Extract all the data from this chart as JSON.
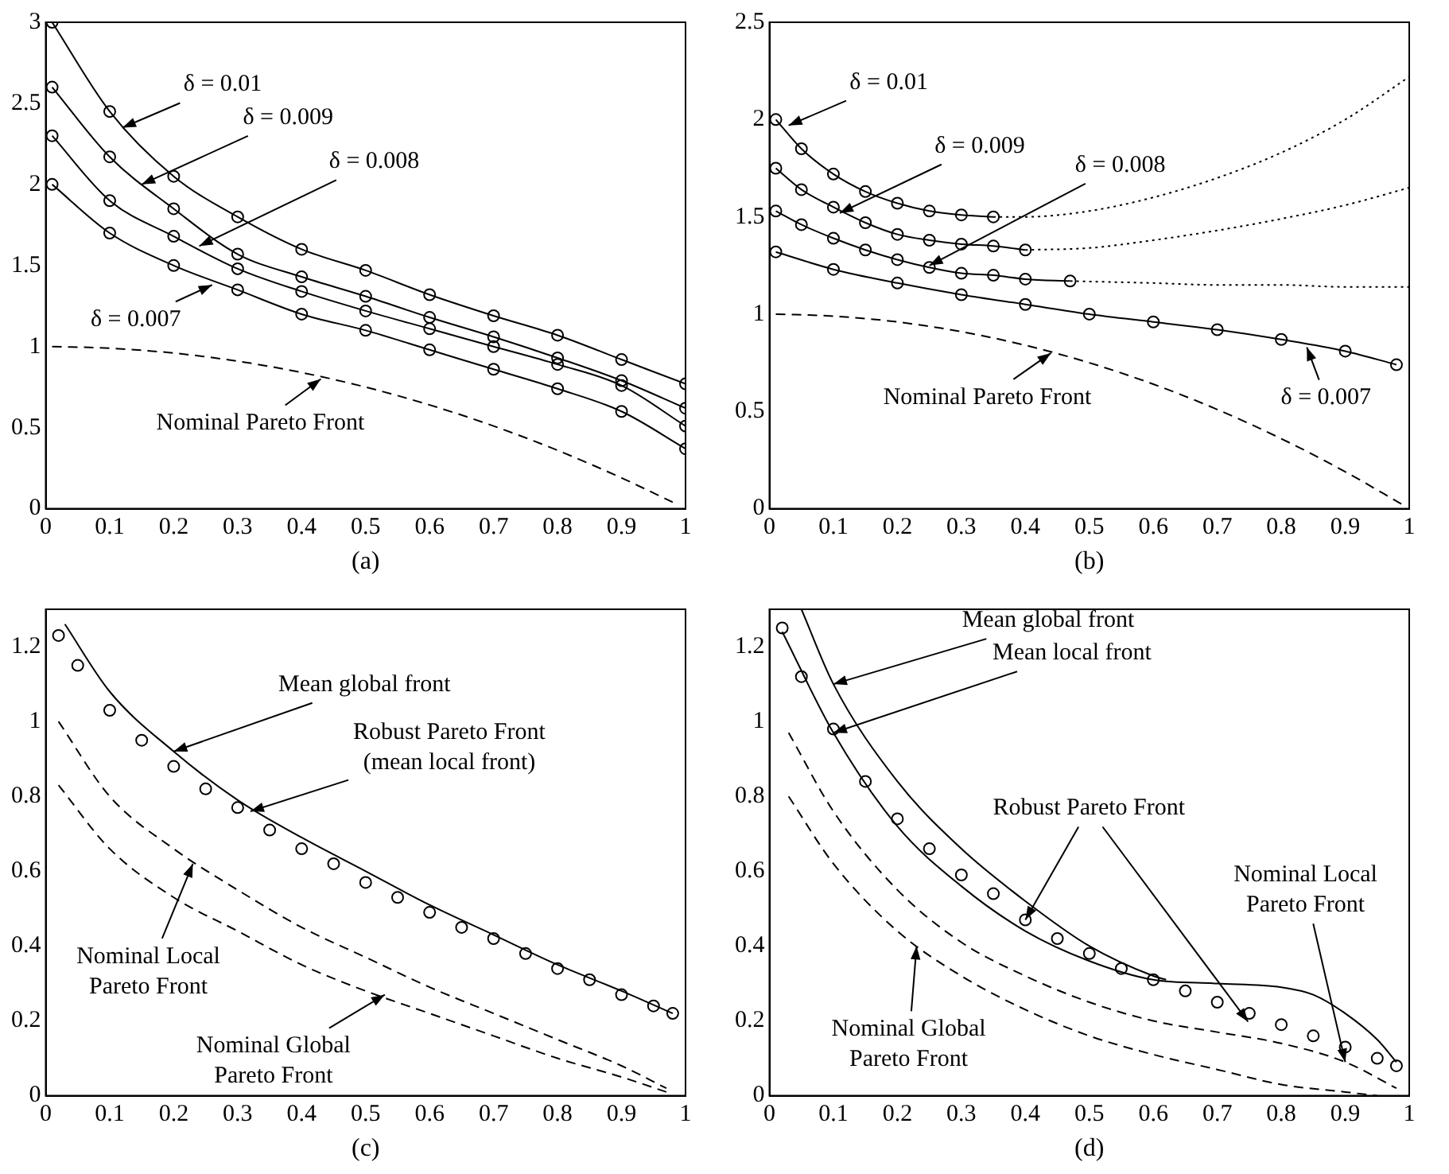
{
  "chart_data": [
    {
      "type": "line",
      "xlabel": "(a)",
      "xlim": [
        0,
        1
      ],
      "ylim": [
        0,
        3
      ],
      "xticks": [
        0,
        0.1,
        0.2,
        0.3,
        0.4,
        0.5,
        0.6,
        0.7,
        0.8,
        0.9,
        1
      ],
      "yticks": [
        0,
        0.5,
        1,
        1.5,
        2,
        2.5,
        3
      ],
      "series": [
        {
          "type": "line",
          "color": "#000000",
          "marker": "circle",
          "line_style": "solid",
          "x": [
            0.01,
            0.1,
            0.2,
            0.3,
            0.4,
            0.5,
            0.6,
            0.7,
            0.8,
            0.9,
            1
          ],
          "values": [
            3.0,
            2.45,
            2.05,
            1.8,
            1.6,
            1.47,
            1.32,
            1.19,
            1.07,
            0.92,
            0.77
          ]
        },
        {
          "type": "line",
          "color": "#000000",
          "marker": "circle",
          "line_style": "solid",
          "x": [
            0.01,
            0.1,
            0.2,
            0.3,
            0.4,
            0.5,
            0.6,
            0.7,
            0.8,
            0.9,
            1
          ],
          "values": [
            2.6,
            2.17,
            1.85,
            1.57,
            1.43,
            1.31,
            1.18,
            1.06,
            0.93,
            0.79,
            0.62
          ]
        },
        {
          "type": "line",
          "color": "#000000",
          "marker": "circle",
          "line_style": "solid",
          "x": [
            0.01,
            0.1,
            0.2,
            0.3,
            0.4,
            0.5,
            0.6,
            0.7,
            0.8,
            0.9,
            1
          ],
          "values": [
            2.3,
            1.9,
            1.68,
            1.48,
            1.34,
            1.22,
            1.11,
            1.0,
            0.89,
            0.76,
            0.51
          ]
        },
        {
          "type": "line",
          "color": "#000000",
          "marker": "circle",
          "line_style": "solid",
          "x": [
            0.01,
            0.1,
            0.2,
            0.3,
            0.4,
            0.5,
            0.6,
            0.7,
            0.8,
            0.9,
            1
          ],
          "values": [
            2.0,
            1.7,
            1.5,
            1.35,
            1.2,
            1.1,
            0.98,
            0.86,
            0.74,
            0.6,
            0.37
          ]
        },
        {
          "type": "line",
          "color": "#000000",
          "marker": "none",
          "line_style": "dashed",
          "x": [
            0.01,
            0.1,
            0.2,
            0.3,
            0.4,
            0.5,
            0.6,
            0.7,
            0.8,
            0.9,
            0.98
          ],
          "values": [
            1.0,
            0.99,
            0.96,
            0.91,
            0.84,
            0.75,
            0.64,
            0.51,
            0.36,
            0.19,
            0.04
          ]
        }
      ],
      "annotations": [
        {
          "text": "δ = 0.01",
          "x": 0.12,
          "y": 2.35
        },
        {
          "text": "δ = 0.009",
          "x": 0.15,
          "y": 2.0
        },
        {
          "text": "δ = 0.008",
          "x": 0.24,
          "y": 1.62
        },
        {
          "text": "δ = 0.007",
          "x": 0.26,
          "y": 1.38
        },
        {
          "text": "Nominal Pareto Front",
          "x": 0.43,
          "y": 0.8
        }
      ]
    },
    {
      "type": "line",
      "xlabel": "(b)",
      "xlim": [
        0,
        1
      ],
      "ylim": [
        0,
        2.5
      ],
      "xticks": [
        0,
        0.1,
        0.2,
        0.3,
        0.4,
        0.5,
        0.6,
        0.7,
        0.8,
        0.9,
        1
      ],
      "yticks": [
        0,
        0.5,
        1,
        1.5,
        2,
        2.5
      ],
      "series": [
        {
          "type": "line",
          "color": "#000000",
          "marker": "circle",
          "line_style": "solid",
          "x": [
            0.01,
            0.05,
            0.1,
            0.15,
            0.2,
            0.25,
            0.3,
            0.35
          ],
          "values": [
            2.0,
            1.85,
            1.72,
            1.63,
            1.57,
            1.53,
            1.51,
            1.5
          ]
        },
        {
          "type": "line",
          "color": "#000000",
          "marker": "none",
          "line_style": "dotted",
          "x": [
            0.35,
            0.4,
            0.5,
            0.6,
            0.7,
            0.8,
            0.9,
            1
          ],
          "values": [
            1.5,
            1.5,
            1.53,
            1.6,
            1.7,
            1.83,
            2.0,
            2.22
          ]
        },
        {
          "type": "line",
          "color": "#000000",
          "marker": "circle",
          "line_style": "solid",
          "x": [
            0.01,
            0.05,
            0.1,
            0.15,
            0.2,
            0.25,
            0.3,
            0.35,
            0.4
          ],
          "values": [
            1.75,
            1.64,
            1.55,
            1.47,
            1.41,
            1.38,
            1.36,
            1.35,
            1.33
          ]
        },
        {
          "type": "line",
          "color": "#000000",
          "marker": "none",
          "line_style": "dotted",
          "x": [
            0.4,
            0.5,
            0.6,
            0.7,
            0.8,
            0.9,
            1
          ],
          "values": [
            1.33,
            1.34,
            1.38,
            1.43,
            1.49,
            1.56,
            1.65
          ]
        },
        {
          "type": "line",
          "color": "#000000",
          "marker": "circle",
          "line_style": "solid",
          "x": [
            0.01,
            0.05,
            0.1,
            0.15,
            0.2,
            0.25,
            0.3,
            0.35,
            0.4,
            0.47
          ],
          "values": [
            1.53,
            1.46,
            1.39,
            1.33,
            1.28,
            1.24,
            1.21,
            1.2,
            1.18,
            1.17
          ]
        },
        {
          "type": "line",
          "color": "#000000",
          "marker": "none",
          "line_style": "dotted",
          "x": [
            0.47,
            0.6,
            0.7,
            0.8,
            0.9,
            1
          ],
          "values": [
            1.17,
            1.16,
            1.15,
            1.15,
            1.14,
            1.14
          ]
        },
        {
          "type": "line",
          "color": "#000000",
          "marker": "circle",
          "line_style": "solid",
          "x": [
            0.01,
            0.1,
            0.2,
            0.3,
            0.4,
            0.5,
            0.6,
            0.7,
            0.8,
            0.9,
            0.98
          ],
          "values": [
            1.32,
            1.23,
            1.16,
            1.1,
            1.05,
            1.0,
            0.96,
            0.92,
            0.87,
            0.81,
            0.74
          ]
        },
        {
          "type": "line",
          "color": "#000000",
          "marker": "none",
          "line_style": "dashed",
          "x": [
            0.01,
            0.1,
            0.2,
            0.3,
            0.4,
            0.5,
            0.6,
            0.7,
            0.8,
            0.9,
            0.99
          ],
          "values": [
            1.0,
            0.99,
            0.96,
            0.91,
            0.84,
            0.75,
            0.64,
            0.51,
            0.36,
            0.19,
            0.02
          ]
        }
      ],
      "annotations": [
        {
          "text": "δ = 0.01",
          "x": 0.03,
          "y": 1.97
        },
        {
          "text": "δ = 0.009",
          "x": 0.11,
          "y": 1.52
        },
        {
          "text": "δ = 0.008",
          "x": 0.25,
          "y": 1.25
        },
        {
          "text": "δ = 0.007",
          "x": 0.84,
          "y": 0.83
        },
        {
          "text": "Nominal Pareto Front",
          "x": 0.44,
          "y": 0.8
        }
      ]
    },
    {
      "type": "line",
      "xlabel": "(c)",
      "xlim": [
        0,
        1
      ],
      "ylim": [
        0,
        1.3
      ],
      "xticks": [
        0,
        0.1,
        0.2,
        0.3,
        0.4,
        0.5,
        0.6,
        0.7,
        0.8,
        0.9,
        1
      ],
      "yticks": [
        0,
        0.2,
        0.4,
        0.6,
        0.8,
        1,
        1.2
      ],
      "series": [
        {
          "type": "scatter",
          "color": "#000000",
          "marker": "circle",
          "x": [
            0.02,
            0.05,
            0.1,
            0.15,
            0.2,
            0.25,
            0.3,
            0.35,
            0.4,
            0.45,
            0.5,
            0.55,
            0.6,
            0.65,
            0.7,
            0.75,
            0.8,
            0.85,
            0.9,
            0.95,
            0.98
          ],
          "values": [
            1.23,
            1.15,
            1.03,
            0.95,
            0.88,
            0.82,
            0.77,
            0.71,
            0.66,
            0.62,
            0.57,
            0.53,
            0.49,
            0.45,
            0.42,
            0.38,
            0.34,
            0.31,
            0.27,
            0.24,
            0.22
          ]
        },
        {
          "type": "line",
          "color": "#000000",
          "marker": "none",
          "line_style": "solid",
          "x": [
            0.03,
            0.1,
            0.2,
            0.3,
            0.4,
            0.5,
            0.6,
            0.7,
            0.8,
            0.9,
            0.98
          ],
          "values": [
            1.26,
            1.08,
            0.92,
            0.79,
            0.69,
            0.6,
            0.51,
            0.43,
            0.35,
            0.28,
            0.22
          ]
        },
        {
          "type": "line",
          "color": "#000000",
          "marker": "none",
          "line_style": "dashed",
          "x": [
            0.02,
            0.1,
            0.2,
            0.3,
            0.4,
            0.5,
            0.6,
            0.7,
            0.8,
            0.9,
            0.97
          ],
          "values": [
            1.0,
            0.8,
            0.66,
            0.55,
            0.45,
            0.37,
            0.29,
            0.22,
            0.15,
            0.08,
            0.02
          ]
        },
        {
          "type": "line",
          "color": "#000000",
          "marker": "none",
          "line_style": "dashed",
          "x": [
            0.02,
            0.1,
            0.2,
            0.3,
            0.4,
            0.5,
            0.6,
            0.7,
            0.8,
            0.9,
            0.97
          ],
          "values": [
            0.83,
            0.66,
            0.53,
            0.44,
            0.35,
            0.28,
            0.22,
            0.16,
            0.1,
            0.05,
            0.01
          ]
        }
      ],
      "annotations": [
        {
          "text": "Mean global front",
          "x": 0.2,
          "y": 0.92
        },
        {
          "text": "Robust Pareto Front\n(mean local front)",
          "x": 0.32,
          "y": 0.76
        },
        {
          "text": "Nominal Local\nPareto Front",
          "x": 0.23,
          "y": 0.62
        },
        {
          "text": "Nominal Global\nPareto Front",
          "x": 0.53,
          "y": 0.27
        }
      ]
    },
    {
      "type": "line",
      "xlabel": "(d)",
      "xlim": [
        0,
        1
      ],
      "ylim": [
        0,
        1.3
      ],
      "xticks": [
        0,
        0.1,
        0.2,
        0.3,
        0.4,
        0.5,
        0.6,
        0.7,
        0.8,
        0.9,
        1
      ],
      "yticks": [
        0,
        0.2,
        0.4,
        0.6,
        0.8,
        1,
        1.2
      ],
      "series": [
        {
          "type": "scatter",
          "color": "#000000",
          "marker": "circle",
          "x": [
            0.02,
            0.05,
            0.1,
            0.15,
            0.2,
            0.25,
            0.3,
            0.35,
            0.4,
            0.45,
            0.5,
            0.55,
            0.6,
            0.65,
            0.7,
            0.75,
            0.8,
            0.85,
            0.9,
            0.95,
            0.98
          ],
          "values": [
            1.25,
            1.12,
            0.98,
            0.84,
            0.74,
            0.66,
            0.59,
            0.54,
            0.47,
            0.42,
            0.38,
            0.34,
            0.31,
            0.28,
            0.25,
            0.22,
            0.19,
            0.16,
            0.13,
            0.1,
            0.08
          ]
        },
        {
          "type": "line",
          "color": "#000000",
          "marker": "none",
          "line_style": "solid",
          "x": [
            0.05,
            0.1,
            0.2,
            0.3,
            0.4,
            0.5,
            0.6,
            0.62
          ],
          "values": [
            1.3,
            1.1,
            0.84,
            0.66,
            0.52,
            0.4,
            0.32,
            0.31
          ]
        },
        {
          "type": "line",
          "color": "#000000",
          "marker": "none",
          "line_style": "solid",
          "x": [
            0.02,
            0.1,
            0.2,
            0.3,
            0.4,
            0.5,
            0.6,
            0.7,
            0.8,
            0.85,
            0.9,
            0.95,
            0.98
          ],
          "values": [
            1.24,
            0.97,
            0.72,
            0.56,
            0.44,
            0.36,
            0.31,
            0.3,
            0.29,
            0.27,
            0.22,
            0.15,
            0.09
          ]
        },
        {
          "type": "line",
          "color": "#000000",
          "marker": "none",
          "line_style": "dashed",
          "x": [
            0.03,
            0.1,
            0.2,
            0.3,
            0.4,
            0.5,
            0.6,
            0.7,
            0.8,
            0.9,
            0.98
          ],
          "values": [
            0.97,
            0.76,
            0.55,
            0.41,
            0.32,
            0.25,
            0.2,
            0.17,
            0.14,
            0.09,
            0.02
          ]
        },
        {
          "type": "line",
          "color": "#000000",
          "marker": "none",
          "line_style": "dashed",
          "x": [
            0.03,
            0.1,
            0.2,
            0.3,
            0.4,
            0.5,
            0.6,
            0.7,
            0.8,
            0.9,
            0.95
          ],
          "values": [
            0.8,
            0.62,
            0.44,
            0.32,
            0.23,
            0.16,
            0.11,
            0.07,
            0.03,
            0.01,
            0.0
          ]
        }
      ],
      "annotations": [
        {
          "text": "Mean global front",
          "x": 0.1,
          "y": 1.1
        },
        {
          "text": "Mean local front",
          "x": 0.1,
          "y": 0.97
        },
        {
          "text": "Robust Pareto Front",
          "x": 0.4,
          "y": 0.47
        },
        {
          "text": "Nominal Local\nPareto Front",
          "x": 0.9,
          "y": 0.09
        },
        {
          "text": "Nominal Global\nPareto Front",
          "x": 0.23,
          "y": 0.4
        }
      ]
    }
  ]
}
